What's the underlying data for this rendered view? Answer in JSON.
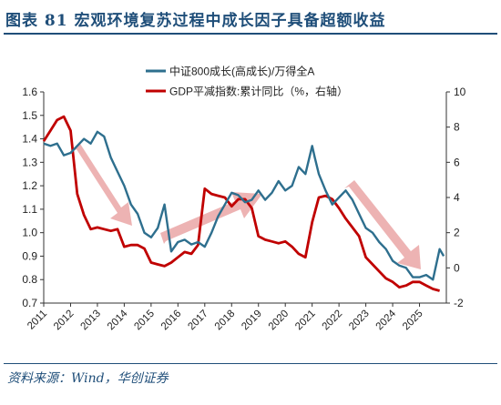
{
  "header": {
    "title": "图表 81  宏观环境复苏过程中成长因子具备超额收益"
  },
  "footer": {
    "source": "资料来源：Wind，华创证券"
  },
  "chart_data": {
    "type": "line",
    "x_range": [
      2011.0,
      2026.0
    ],
    "x_ticks": [
      "2011",
      "2012",
      "2013",
      "2014",
      "2015",
      "2016",
      "2017",
      "2018",
      "2019",
      "2020",
      "2021",
      "2022",
      "2023",
      "2024",
      "2025"
    ],
    "y_left": {
      "range": [
        0.7,
        1.6
      ],
      "ticks": [
        "1.6",
        "1.5",
        "1.4",
        "1.3",
        "1.2",
        "1.1",
        "1.0",
        "0.9",
        "0.8",
        "0.7"
      ]
    },
    "y_right": {
      "range": [
        -2,
        10
      ],
      "ticks": [
        "10",
        "8",
        "6",
        "4",
        "2",
        "0",
        "-2"
      ]
    },
    "legend_position": "top-center",
    "grid": false,
    "series": [
      {
        "name": "中证800成长(高成长)/万得全A",
        "axis": "left",
        "color": "#2e6f8e",
        "x": [
          2011.0,
          2011.25,
          2011.5,
          2011.75,
          2012.0,
          2012.25,
          2012.5,
          2012.75,
          2013.0,
          2013.25,
          2013.5,
          2013.75,
          2014.0,
          2014.25,
          2014.5,
          2014.75,
          2015.0,
          2015.25,
          2015.5,
          2015.75,
          2016.0,
          2016.25,
          2016.5,
          2016.75,
          2017.0,
          2017.25,
          2017.5,
          2017.75,
          2018.0,
          2018.25,
          2018.5,
          2018.75,
          2019.0,
          2019.25,
          2019.5,
          2019.75,
          2020.0,
          2020.25,
          2020.5,
          2020.75,
          2021.0,
          2021.1,
          2021.25,
          2021.5,
          2021.75,
          2022.0,
          2022.25,
          2022.5,
          2022.75,
          2023.0,
          2023.25,
          2023.5,
          2023.75,
          2024.0,
          2024.25,
          2024.5,
          2024.75,
          2025.0,
          2025.25,
          2025.5,
          2025.75,
          2025.9
        ],
        "y": [
          1.38,
          1.37,
          1.38,
          1.33,
          1.34,
          1.37,
          1.4,
          1.38,
          1.43,
          1.41,
          1.32,
          1.26,
          1.2,
          1.12,
          1.08,
          1.0,
          0.98,
          1.02,
          1.12,
          0.92,
          0.96,
          0.97,
          0.95,
          0.96,
          0.94,
          1.0,
          1.07,
          1.12,
          1.17,
          1.16,
          1.13,
          1.14,
          1.18,
          1.14,
          1.17,
          1.22,
          1.18,
          1.2,
          1.28,
          1.25,
          1.37,
          1.32,
          1.25,
          1.18,
          1.12,
          1.15,
          1.18,
          1.14,
          1.08,
          1.02,
          1.0,
          0.96,
          0.93,
          0.88,
          0.86,
          0.85,
          0.81,
          0.81,
          0.82,
          0.8,
          0.93,
          0.9
        ]
      },
      {
        "name": "GDP平减指数:累计同比（%，右轴）",
        "axis": "right",
        "color": "#c00000",
        "x": [
          2011.0,
          2011.25,
          2011.5,
          2011.75,
          2012.0,
          2012.25,
          2012.5,
          2012.75,
          2013.0,
          2013.25,
          2013.5,
          2013.75,
          2014.0,
          2014.25,
          2014.5,
          2014.75,
          2015.0,
          2015.25,
          2015.5,
          2015.75,
          2016.0,
          2016.25,
          2016.5,
          2016.75,
          2017.0,
          2017.25,
          2017.5,
          2017.75,
          2018.0,
          2018.25,
          2018.5,
          2018.75,
          2019.0,
          2019.25,
          2019.5,
          2019.75,
          2020.0,
          2020.25,
          2020.5,
          2020.75,
          2021.0,
          2021.25,
          2021.5,
          2021.75,
          2022.0,
          2022.25,
          2022.5,
          2022.75,
          2023.0,
          2023.25,
          2023.5,
          2023.75,
          2024.0,
          2024.25,
          2024.5,
          2024.75,
          2025.0,
          2025.25,
          2025.5,
          2025.75
        ],
        "y": [
          7.2,
          7.8,
          8.4,
          8.6,
          7.8,
          4.2,
          3.0,
          2.2,
          2.3,
          2.2,
          2.1,
          2.2,
          1.2,
          1.3,
          1.3,
          1.1,
          0.3,
          0.2,
          0.1,
          0.3,
          0.6,
          0.9,
          0.8,
          1.3,
          4.5,
          4.2,
          4.1,
          4.0,
          3.5,
          3.9,
          3.9,
          3.4,
          1.8,
          1.6,
          1.5,
          1.4,
          1.5,
          1.2,
          0.8,
          0.6,
          2.6,
          4.0,
          4.1,
          3.9,
          3.4,
          2.8,
          2.3,
          1.8,
          0.6,
          0.2,
          -0.2,
          -0.6,
          -0.8,
          -1.1,
          -1.0,
          -0.8,
          -0.8,
          -1.0,
          -1.2,
          -1.3
        ]
      }
    ]
  }
}
